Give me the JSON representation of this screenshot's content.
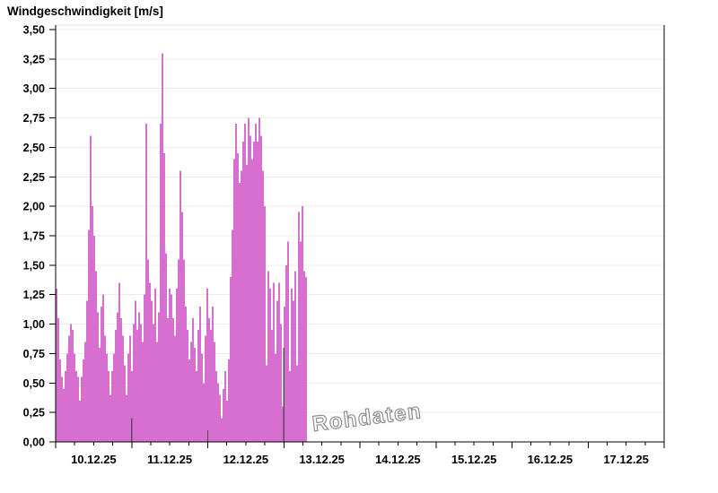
{
  "title": "Windgeschwindigkeit [m/s]",
  "watermark": "Rohdaten",
  "colors": {
    "bar": "#d76fd1",
    "day_marker": "#5c485c",
    "grid": "#ebebeb",
    "plot_top_border": "#e0e0e0",
    "axis": "#000000",
    "text": "#000000",
    "watermark_outline": "#8d8d8d"
  },
  "chart_data": {
    "type": "bar",
    "title": "Windgeschwindigkeit [m/s]",
    "ylabel": "Windgeschwindigkeit [m/s]",
    "unit": "m/s",
    "ylim": [
      0,
      3.5
    ],
    "y_tick_step": 0.25,
    "y_tick_labels": [
      "0,00",
      "0,25",
      "0,50",
      "0,75",
      "1,00",
      "1,25",
      "1,50",
      "1,75",
      "2,00",
      "2,25",
      "2,50",
      "2,75",
      "3,00",
      "3,25",
      "3,50"
    ],
    "x_tick_labels": [
      "10.12.25",
      "11.12.25",
      "12.12.25",
      "13.12.25",
      "14.12.25",
      "15.12.25",
      "16.12.25",
      "17.12.25"
    ],
    "x_minor_ticks_per_day": 3,
    "grid": "horizontal-only",
    "legend": "none",
    "data_start_day": 0,
    "data_end_day": 3.3,
    "sample_step_days": 0.0236,
    "values": [
      1.3,
      1.05,
      0.7,
      0.55,
      0.45,
      0.6,
      0.75,
      0.9,
      1.0,
      0.95,
      0.75,
      0.6,
      0.55,
      0.35,
      0.55,
      0.7,
      0.85,
      1.2,
      1.8,
      2.6,
      2.0,
      1.75,
      1.45,
      1.1,
      0.8,
      1.15,
      1.25,
      0.9,
      0.75,
      0.6,
      0.4,
      0.6,
      0.75,
      0.95,
      1.1,
      1.35,
      1.05,
      0.9,
      0.65,
      0.4,
      0.75,
      0.9,
      0.6,
      1.0,
      1.2,
      0.95,
      1.1,
      1.0,
      0.85,
      1.25,
      2.7,
      1.55,
      1.35,
      1.2,
      1.0,
      1.3,
      0.85,
      1.1,
      2.7,
      3.3,
      2.45,
      1.6,
      1.05,
      1.3,
      1.25,
      1.05,
      0.9,
      1.3,
      1.55,
      2.3,
      1.95,
      1.55,
      1.15,
      0.95,
      0.7,
      0.85,
      1.05,
      0.8,
      0.6,
      0.95,
      1.15,
      0.75,
      0.5,
      0.9,
      1.3,
      1.05,
      0.95,
      1.15,
      0.85,
      0.6,
      0.5,
      0.4,
      0.2,
      0.45,
      0.6,
      0.35,
      0.7,
      1.4,
      1.8,
      2.4,
      2.7,
      2.45,
      2.2,
      2.3,
      2.55,
      2.7,
      2.35,
      2.75,
      2.6,
      2.4,
      2.55,
      2.7,
      2.55,
      2.75,
      2.6,
      2.3,
      2.0,
      0.65,
      1.45,
      1.3,
      0.95,
      1.35,
      0.75,
      1.2,
      1.35,
      1.0,
      0.3,
      1.15,
      1.5,
      1.7,
      0.6,
      1.3,
      1.2,
      1.45,
      0.65,
      1.95,
      1.7,
      2.0,
      1.45,
      1.4
    ],
    "day_boundary_markers": [
      {
        "day": 1,
        "value": 0.2
      },
      {
        "day": 2,
        "value": 0.1
      },
      {
        "day": 3,
        "value": 0.8
      }
    ]
  }
}
